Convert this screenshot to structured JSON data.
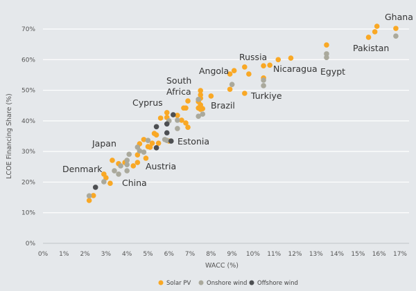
{
  "chart_data": {
    "type": "scatter",
    "xlabel": "WACC (%)",
    "ylabel": "LCOE Financing Share (%)",
    "xlim": [
      0,
      17
    ],
    "ylim": [
      0,
      70
    ],
    "x_ticks": [
      "0%",
      "1%",
      "2%",
      "3%",
      "4%",
      "5%",
      "6%",
      "7%",
      "8%",
      "9%",
      "10%",
      "11%",
      "12%",
      "13%",
      "14%",
      "15%",
      "16%",
      "17%"
    ],
    "y_ticks": [
      "0%",
      "10%",
      "20%",
      "30%",
      "40%",
      "50%",
      "60%",
      "70%"
    ],
    "grid": "horizontal",
    "legend_position": "bottom",
    "series": [
      {
        "name": "Solar PV",
        "color": "#f9a825",
        "points": [
          [
            2.2,
            14.0
          ],
          [
            2.4,
            15.6
          ],
          [
            2.9,
            22.6
          ],
          [
            3.0,
            21.4
          ],
          [
            3.2,
            19.6
          ],
          [
            3.3,
            27.1
          ],
          [
            3.6,
            26.0
          ],
          [
            3.9,
            26.4
          ],
          [
            4.3,
            25.3
          ],
          [
            4.5,
            26.4
          ],
          [
            4.9,
            27.8
          ],
          [
            4.5,
            28.9
          ],
          [
            4.6,
            32.5
          ],
          [
            4.8,
            33.9
          ],
          [
            5.0,
            31.6
          ],
          [
            5.1,
            31.4
          ],
          [
            5.2,
            32.7
          ],
          [
            5.5,
            32.7
          ],
          [
            5.3,
            35.9
          ],
          [
            5.4,
            35.4
          ],
          [
            5.6,
            40.9
          ],
          [
            5.9,
            42.7
          ],
          [
            5.9,
            41.1
          ],
          [
            6.4,
            41.8
          ],
          [
            6.6,
            40.2
          ],
          [
            6.8,
            39.3
          ],
          [
            6.9,
            37.9
          ],
          [
            6.0,
            33.4
          ],
          [
            6.7,
            44.2
          ],
          [
            6.8,
            44.2
          ],
          [
            6.9,
            46.5
          ],
          [
            7.5,
            49.9
          ],
          [
            7.5,
            48.5
          ],
          [
            7.5,
            47.4
          ],
          [
            7.4,
            46.3
          ],
          [
            7.5,
            45.2
          ],
          [
            7.4,
            44.2
          ],
          [
            7.6,
            44.0
          ],
          [
            7.5,
            43.8
          ],
          [
            8.0,
            48.1
          ],
          [
            8.9,
            50.3
          ],
          [
            8.9,
            55.3
          ],
          [
            9.1,
            56.4
          ],
          [
            9.6,
            57.6
          ],
          [
            9.8,
            55.3
          ],
          [
            9.6,
            49.0
          ],
          [
            10.5,
            54.0
          ],
          [
            10.5,
            58.0
          ],
          [
            10.8,
            58.2
          ],
          [
            11.2,
            60.0
          ],
          [
            11.8,
            60.5
          ],
          [
            13.5,
            64.8
          ],
          [
            15.9,
            70.9
          ],
          [
            15.8,
            69.1
          ],
          [
            15.5,
            67.3
          ],
          [
            16.8,
            70.2
          ]
        ]
      },
      {
        "name": "Onshore wind",
        "color": "#aaa99c",
        "points": [
          [
            2.2,
            15.5
          ],
          [
            2.9,
            20.1
          ],
          [
            3.4,
            23.7
          ],
          [
            3.6,
            22.6
          ],
          [
            3.7,
            25.3
          ],
          [
            4.0,
            27.1
          ],
          [
            4.1,
            29.1
          ],
          [
            4.0,
            25.7
          ],
          [
            4.0,
            23.7
          ],
          [
            4.5,
            31.4
          ],
          [
            4.6,
            30.2
          ],
          [
            4.8,
            29.8
          ],
          [
            5.0,
            33.6
          ],
          [
            5.8,
            33.9
          ],
          [
            5.9,
            33.6
          ],
          [
            6.4,
            37.5
          ],
          [
            6.4,
            40.2
          ],
          [
            7.4,
            41.5
          ],
          [
            7.6,
            42.2
          ],
          [
            6.0,
            40.0
          ],
          [
            9.0,
            51.9
          ],
          [
            10.5,
            53.3
          ],
          [
            10.5,
            51.5
          ],
          [
            7.4,
            47.0
          ],
          [
            13.5,
            61.9
          ],
          [
            13.5,
            60.7
          ],
          [
            16.8,
            67.7
          ]
        ]
      },
      {
        "name": "Offshore wind",
        "color": "#4d4f52",
        "points": [
          [
            2.5,
            18.3
          ],
          [
            5.4,
            31.2
          ],
          [
            5.4,
            38.1
          ],
          [
            5.9,
            36.1
          ],
          [
            5.9,
            39.0
          ],
          [
            6.2,
            42.0
          ],
          [
            6.1,
            33.4
          ]
        ]
      }
    ],
    "annotations": [
      "Ghana",
      "Pakistan",
      "Egypt",
      "Nicaragua",
      "Russia",
      "Angola",
      "Turkiye",
      "South",
      "Africa",
      "Brazil",
      "Cyprus",
      "Estonia",
      "Japan",
      "Austria",
      "Denmark",
      "China"
    ]
  }
}
